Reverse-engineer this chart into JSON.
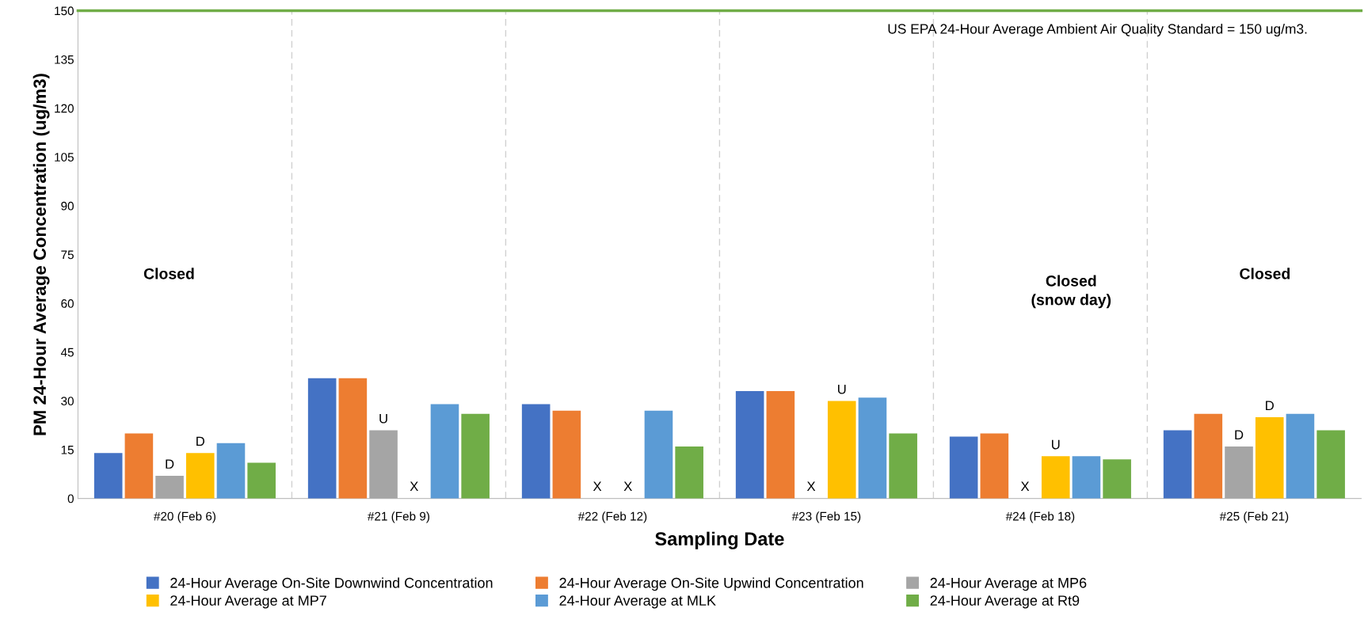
{
  "chart_data": {
    "type": "bar",
    "xlabel": "Sampling Date",
    "ylabel": "PM 24-Hour Average Concentration (ug/m3)",
    "categories": [
      "#20 (Feb 6)",
      "#21 (Feb 9)",
      "#22 (Feb 12)",
      "#23 (Feb 15)",
      "#24 (Feb 18)",
      "#25 (Feb 21)"
    ],
    "series": [
      {
        "name": "24-Hour Average On-Site Downwind Concentration",
        "color": "#4472c4",
        "values": [
          14,
          37,
          29,
          33,
          19,
          21
        ]
      },
      {
        "name": "24-Hour Average On-Site Upwind Concentration",
        "color": "#ed7d31",
        "values": [
          20,
          37,
          27,
          33,
          20,
          26
        ]
      },
      {
        "name": "24-Hour Average at MP6",
        "color": "#a5a5a5",
        "values": [
          7,
          21,
          null,
          null,
          null,
          16
        ],
        "value_labels": [
          "D",
          "U",
          "X",
          "X",
          "X",
          "D"
        ]
      },
      {
        "name": "24-Hour Average at MP7",
        "color": "#ffc000",
        "values": [
          14,
          null,
          null,
          30,
          13,
          25
        ],
        "value_labels": [
          "D",
          "X",
          "X",
          "U",
          "U",
          "D"
        ]
      },
      {
        "name": "24-Hour Average at MLK",
        "color": "#5b9bd5",
        "values": [
          17,
          29,
          27,
          31,
          13,
          26
        ]
      },
      {
        "name": "24-Hour Average at Rt9",
        "color": "#70ad47",
        "values": [
          11,
          26,
          16,
          20,
          12,
          21
        ]
      }
    ],
    "ylim": [
      0,
      150
    ],
    "yticks": [
      0,
      15,
      30,
      45,
      60,
      75,
      90,
      105,
      120,
      135,
      150
    ],
    "ref_lines": [
      {
        "axis": "y",
        "value": 150,
        "label": "US EPA 24-Hour Average Ambient Air Quality Standard = 150 ug/m3.",
        "color": "#70ad47"
      }
    ],
    "annotations": [
      "Closed",
      "Closed\n(snow day)",
      "Closed"
    ],
    "grid": "x",
    "legend": "bottom"
  }
}
